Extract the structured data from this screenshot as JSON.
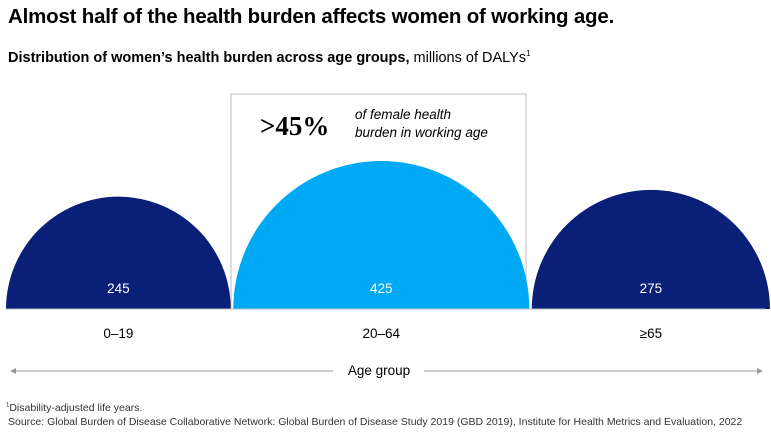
{
  "title": "Almost half of the health burden affects women of working age.",
  "subtitle": {
    "bold": "Distribution of women’s health burden across age groups,",
    "normal": " millions of DALYs",
    "footnote_mark": "1"
  },
  "callout": {
    "value": ">45%",
    "text_line1": "of female health",
    "text_line2": "burden in working age"
  },
  "chart_data": {
    "type": "semicircle-area",
    "categories": [
      "0–19",
      "20–64",
      "≥65"
    ],
    "values": [
      245,
      425,
      275
    ],
    "data_labels": [
      "245",
      "425",
      "275"
    ],
    "xlabel": "Age group",
    "highlight_category": "20–64",
    "colors": {
      "default": "#0a1f78",
      "highlight": "#00a9f4"
    }
  },
  "footnotes": {
    "mark": "1",
    "note": "Disability-adjusted life years.",
    "source": "Source: Global Burden of Disease Collaborative Network: Global Burden of Disease Study 2019 (GBD 2019), Institute for Health Metrics and Evaluation, 2022"
  }
}
